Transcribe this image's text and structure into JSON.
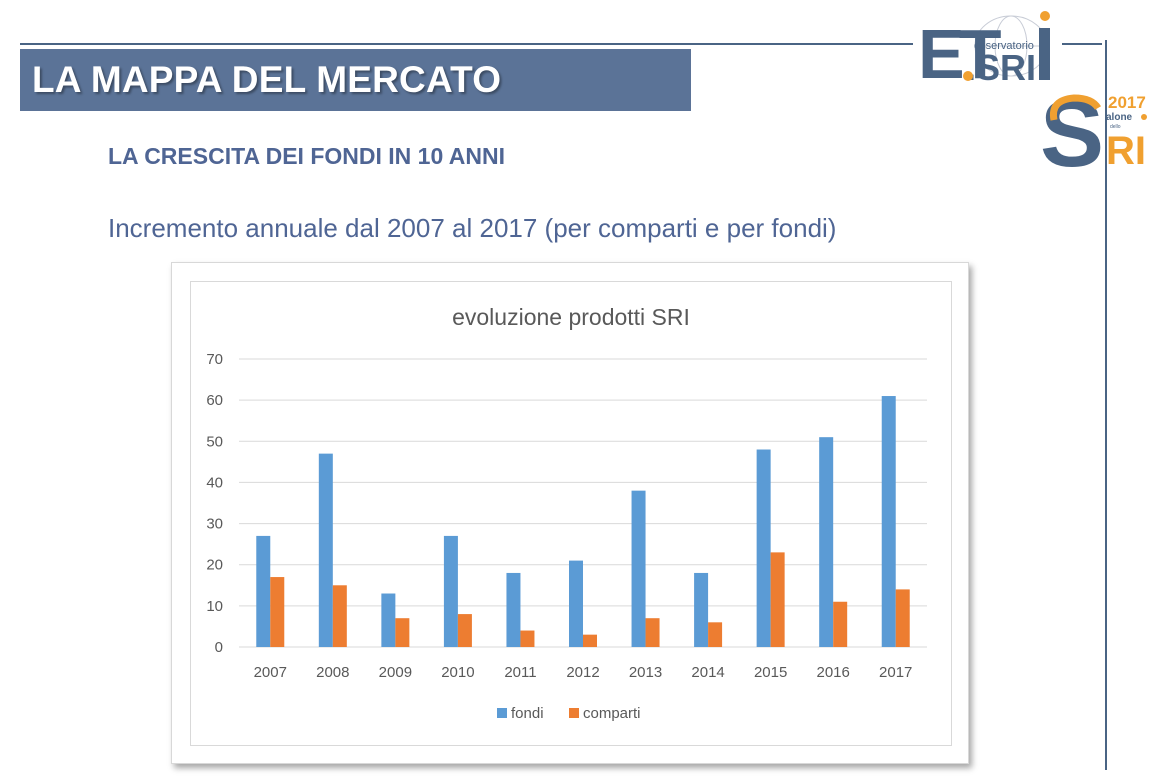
{
  "header": {
    "title": "LA MAPPA DEL MERCATO",
    "subtitle": "LA CRESCITA DEI FONDI IN 10 ANNI",
    "description": "Incremento annuale dal 2007 al 2017 (per comparti e per fondi)"
  },
  "logos": {
    "observatory": {
      "letters": "ET",
      "dot_text": ".SRI",
      "small_text": "osservatorio",
      "i_letter": "i"
    },
    "salone": {
      "year": "2017",
      "big_letter": "S",
      "word": "alone",
      "tiny": "dello",
      "suffix": "RI"
    }
  },
  "colors": {
    "title_bar": "#5b7397",
    "text_blue": "#4f6594",
    "fondi": "#5b9bd5",
    "comparti": "#ed7d31",
    "gold": "#f0a030"
  },
  "chart_data": {
    "type": "bar",
    "title": "evoluzione prodotti SRI",
    "categories": [
      "2007",
      "2008",
      "2009",
      "2010",
      "2011",
      "2012",
      "2013",
      "2014",
      "2015",
      "2016",
      "2017"
    ],
    "series": [
      {
        "name": "fondi",
        "color": "#5b9bd5",
        "values": [
          27,
          47,
          13,
          27,
          18,
          21,
          38,
          18,
          48,
          51,
          61
        ]
      },
      {
        "name": "comparti",
        "color": "#ed7d31",
        "values": [
          17,
          15,
          7,
          8,
          4,
          3,
          7,
          6,
          23,
          11,
          14
        ]
      }
    ],
    "ylim": [
      0,
      70
    ],
    "yticks": [
      0,
      10,
      20,
      30,
      40,
      50,
      60,
      70
    ],
    "grid": true,
    "legend": "bottom"
  }
}
